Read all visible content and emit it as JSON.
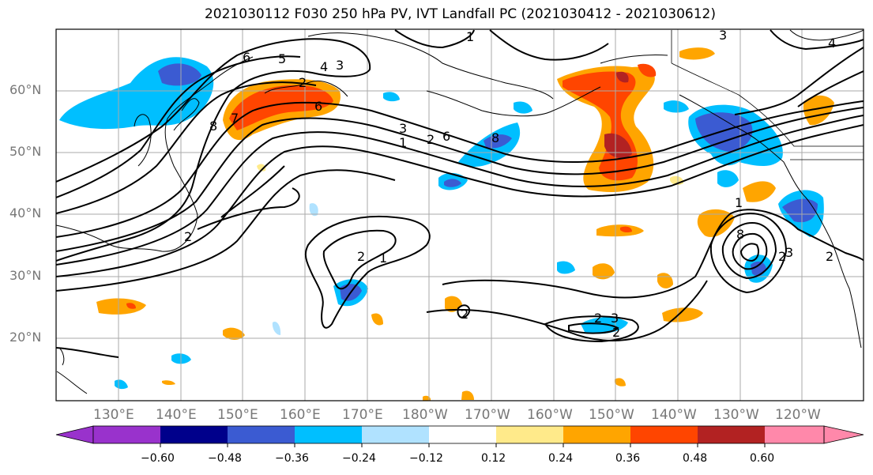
{
  "title": "2021030112 F030 250 hPa PV, IVT Landfall PC (2021030412 - 2021030612)",
  "lat_labels": [
    "60°N",
    "50°N",
    "40°N",
    "30°N",
    "20°N"
  ],
  "lon_labels": [
    "130°E",
    "140°E",
    "150°E",
    "160°E",
    "170°E",
    "180°W",
    "170°W",
    "160°W",
    "150°W",
    "140°W",
    "130°W",
    "120°W"
  ],
  "colorbar": {
    "ticks": [
      "−0.60",
      "−0.48",
      "−0.36",
      "−0.24",
      "−0.12",
      "0.12",
      "0.24",
      "0.36",
      "0.48",
      "0.60"
    ],
    "colors": [
      "#9932cc",
      "#00008b",
      "#3b5bd2",
      "#00bfff",
      "#b0e2ff",
      "#ffffff",
      "#ffea8a",
      "#ffa500",
      "#ff4500",
      "#b22222",
      "#ff88aa"
    ]
  },
  "contour_labels": [
    "1",
    "3",
    "6",
    "5",
    "4",
    "3",
    "2",
    "6",
    "8",
    "7",
    "2",
    "3",
    "1",
    "2",
    "6",
    "8",
    "2",
    "1",
    "2",
    "2",
    "3",
    "2",
    "3",
    "4",
    "2",
    "1",
    "2",
    "8"
  ]
}
